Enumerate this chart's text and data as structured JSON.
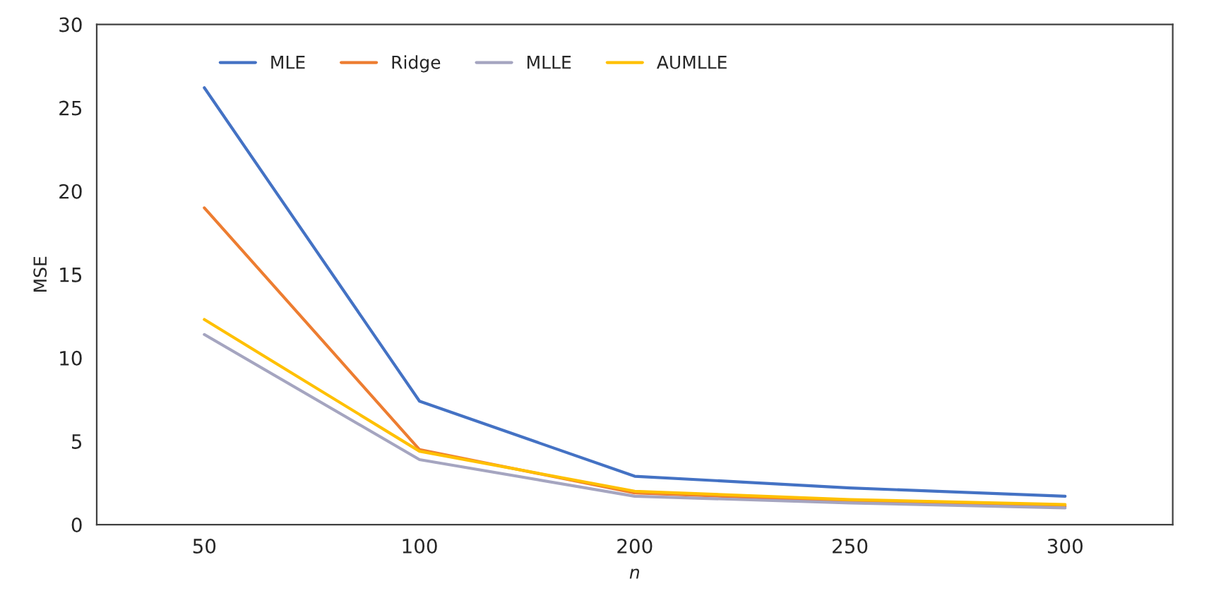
{
  "chart_data": {
    "type": "line",
    "xlabel": "n",
    "ylabel": "MSE",
    "categories": [
      "50",
      "100",
      "200",
      "250",
      "300"
    ],
    "series": [
      {
        "name": "MLE",
        "color": "#4472c4",
        "values": [
          26.2,
          7.4,
          2.9,
          2.2,
          1.7
        ]
      },
      {
        "name": "Ridge",
        "color": "#ed7d31",
        "values": [
          19.0,
          4.5,
          1.9,
          1.4,
          1.1
        ]
      },
      {
        "name": "MLLE",
        "color": "#a5a5c0",
        "values": [
          11.4,
          3.9,
          1.7,
          1.3,
          1.0
        ]
      },
      {
        "name": "AUMLLE",
        "color": "#ffc000",
        "values": [
          12.3,
          4.4,
          2.0,
          1.5,
          1.2
        ]
      }
    ],
    "ylim": [
      0,
      30
    ],
    "yticks": [
      0,
      5,
      10,
      15,
      20,
      25,
      30
    ],
    "grid": false,
    "legend": "top left",
    "marker": "none",
    "line_style": "solid"
  }
}
